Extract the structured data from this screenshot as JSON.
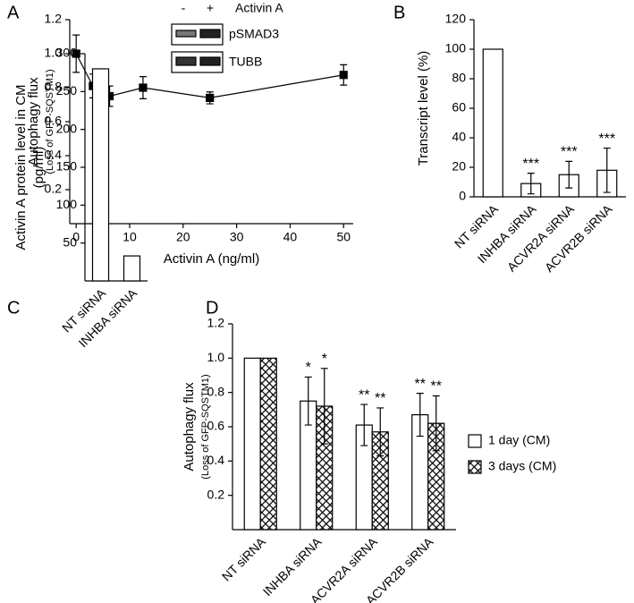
{
  "chart_data": [
    {
      "panel": "A",
      "type": "line",
      "x": [
        0,
        3.125,
        6.25,
        12.5,
        25,
        50
      ],
      "values": [
        1.0,
        0.81,
        0.75,
        0.8,
        0.74,
        0.875
      ],
      "errors": [
        0.11,
        0.07,
        0.06,
        0.065,
        0.035,
        0.06
      ],
      "color": "#000000",
      "xlabel": "Activin A (ng/ml)",
      "ylabel": [
        "Autophagy flux",
        "(Loss of GFP-SQSTM1)"
      ],
      "xlim": [
        -1.2,
        51.8
      ],
      "xticks": [
        0,
        10,
        20,
        30,
        40,
        50
      ],
      "ylim": [
        0,
        1.2
      ],
      "yticks": [
        0.2,
        0.4,
        0.6,
        0.8,
        {
          "value": 1,
          "label": "1.0"
        },
        1.2
      ],
      "inset": {
        "columns": [
          "-",
          "+"
        ],
        "treatment": "Activin A",
        "rows": [
          "pSMAD3",
          "TUBB"
        ]
      }
    },
    {
      "panel": "B",
      "type": "bar",
      "categories": [
        "NT siRNA",
        "INHBA siRNA",
        "ACVR2A siRNA",
        "ACVR2B siRNA"
      ],
      "values": [
        100,
        9,
        15,
        18
      ],
      "errors": [
        null,
        7,
        9,
        15
      ],
      "significance": [
        null,
        "***",
        "***",
        "***"
      ],
      "color": "#ffffff",
      "ylabel": [
        "Transcript level (%)"
      ],
      "ylim": [
        0,
        120
      ],
      "yticks": [
        0,
        20,
        40,
        60,
        80,
        100,
        120
      ]
    },
    {
      "panel": "C",
      "type": "bar",
      "categories": [
        "NT siRNA",
        "INHBA siRNA"
      ],
      "values": [
        280,
        33
      ],
      "color": "#ffffff",
      "ylabel": [
        "Activin A protein level in CM",
        "(pg/ml)"
      ],
      "ylim": [
        0,
        300
      ],
      "yticks": [
        50,
        100,
        150,
        200,
        250,
        300
      ]
    },
    {
      "panel": "D",
      "type": "bar",
      "categories": [
        "NT siRNA",
        "INHBA siRNA",
        "ACVR2A siRNA",
        "ACVR2B siRNA"
      ],
      "series": [
        {
          "name": "1 day (CM)",
          "color": "#ffffff",
          "values": [
            1.0,
            0.75,
            0.61,
            0.67
          ],
          "errors": [
            null,
            0.14,
            0.12,
            0.125
          ],
          "significance": [
            null,
            "*",
            "**",
            "**"
          ]
        },
        {
          "name": "3 days (CM)",
          "color": "#ffffff",
          "hatch": true,
          "values": [
            1.0,
            0.72,
            0.57,
            0.62
          ],
          "errors": [
            null,
            0.22,
            0.14,
            0.16
          ],
          "significance": [
            null,
            "*",
            "**",
            "**"
          ]
        }
      ],
      "legend": "right",
      "ylabel": [
        "Autophagy flux",
        "(Loss of GFP-SQSTM1)"
      ],
      "ylim": [
        0,
        1.2
      ],
      "yticks": [
        0.2,
        0.4,
        0.6,
        0.8,
        {
          "value": 1,
          "label": "1.0"
        },
        1.2
      ]
    }
  ]
}
